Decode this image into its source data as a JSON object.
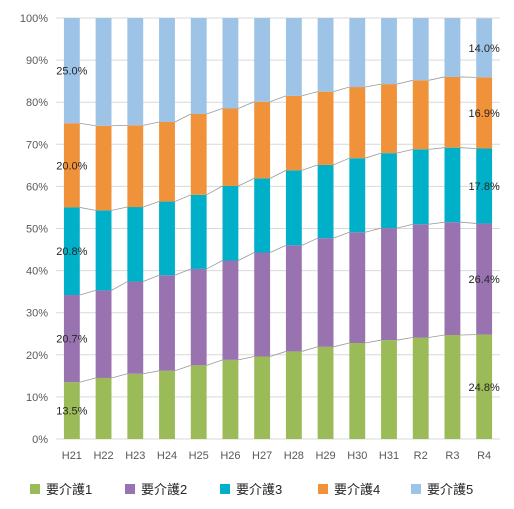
{
  "chart_data": {
    "type": "bar",
    "stacked": "percent",
    "categories": [
      "H21",
      "H22",
      "H23",
      "H24",
      "H25",
      "H26",
      "H27",
      "H28",
      "H29",
      "H30",
      "H31",
      "R2",
      "R3",
      "R4"
    ],
    "series": [
      {
        "name": "要介護1",
        "color": "#9bbb59",
        "values": [
          13.5,
          14.5,
          15.5,
          16.2,
          17.5,
          18.8,
          19.6,
          20.8,
          21.9,
          22.8,
          23.5,
          24.1,
          24.7,
          24.8
        ]
      },
      {
        "name": "要介護2",
        "color": "#9973b0",
        "values": [
          20.7,
          20.8,
          21.9,
          22.7,
          22.9,
          23.6,
          24.7,
          25.2,
          25.8,
          26.3,
          26.6,
          26.9,
          26.8,
          26.4
        ]
      },
      {
        "name": "要介護3",
        "color": "#00b0c8",
        "values": [
          20.8,
          19.0,
          17.7,
          17.5,
          17.6,
          17.7,
          17.6,
          17.8,
          17.4,
          17.6,
          17.8,
          17.8,
          17.7,
          17.8
        ]
      },
      {
        "name": "要介護4",
        "color": "#f0923a",
        "values": [
          20.0,
          20.1,
          19.4,
          18.9,
          19.2,
          18.4,
          18.2,
          17.7,
          17.4,
          16.9,
          16.4,
          16.4,
          16.8,
          16.9
        ]
      },
      {
        "name": "要介護5",
        "color": "#9dc3e6",
        "values": [
          25.0,
          25.6,
          25.5,
          24.7,
          22.8,
          21.5,
          19.9,
          18.5,
          17.5,
          16.4,
          15.7,
          14.8,
          14.0,
          14.0
        ]
      }
    ],
    "data_labels": [
      {
        "category": "H21",
        "series": 0,
        "text": "13.5%"
      },
      {
        "category": "H21",
        "series": 1,
        "text": "20.7%"
      },
      {
        "category": "H21",
        "series": 2,
        "text": "20.8%"
      },
      {
        "category": "H21",
        "series": 3,
        "text": "20.0%"
      },
      {
        "category": "H21",
        "series": 4,
        "text": "25.0%"
      },
      {
        "category": "R4",
        "series": 0,
        "text": "24.8%"
      },
      {
        "category": "R4",
        "series": 1,
        "text": "26.4%"
      },
      {
        "category": "R4",
        "series": 2,
        "text": "17.8%"
      },
      {
        "category": "R4",
        "series": 3,
        "text": "16.9%"
      },
      {
        "category": "R4",
        "series": 4,
        "text": "14.0%"
      }
    ],
    "y_ticks": [
      "0%",
      "10%",
      "20%",
      "30%",
      "40%",
      "50%",
      "60%",
      "70%",
      "80%",
      "90%",
      "100%"
    ],
    "ylim": [
      0,
      100
    ],
    "grid": true,
    "series_lines": true,
    "legend_position": "bottom",
    "title": "",
    "xlabel": "",
    "ylabel": ""
  }
}
